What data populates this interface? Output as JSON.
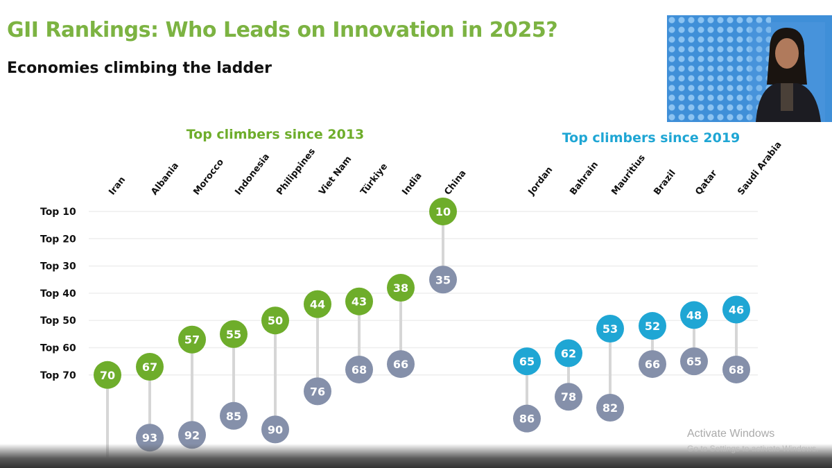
{
  "header": {
    "title": "GII Rankings: Who Leads on Innovation in 2025?",
    "subtitle": "Economies climbing the ladder"
  },
  "watermark": {
    "line1": "Activate Windows",
    "line2": "Go to Settings to activate Windows."
  },
  "chart_data": {
    "type": "dumbbell",
    "y_axis": {
      "direction": "rank (lower is better, top of chart)",
      "ticks": [
        "Top 10",
        "Top 20",
        "Top 30",
        "Top 40",
        "Top 50",
        "Top 60",
        "Top 70"
      ],
      "tick_values": [
        10,
        20,
        30,
        40,
        50,
        60,
        70
      ],
      "grid": true
    },
    "colors": {
      "green": "#6ead2b",
      "blue": "#1fa6d4",
      "gray": "#8590aa",
      "connector": "#d6d6d6"
    },
    "groups": [
      {
        "name": "Top climbers since 2013",
        "color": "#6ead2b",
        "categories": [
          "Iran",
          "Albania",
          "Morocco",
          "Indonesia",
          "Philippines",
          "Viet Nam",
          "Türkiye",
          "India",
          "China"
        ],
        "current_rank": [
          70,
          67,
          57,
          55,
          50,
          44,
          43,
          38,
          10
        ],
        "earlier_rank": [
          null,
          93,
          92,
          85,
          90,
          76,
          68,
          66,
          35
        ]
      },
      {
        "name": "Top climbers since 2019",
        "color": "#1fa6d4",
        "categories": [
          "Jordan",
          "Bahrain",
          "Mauritius",
          "Brazil",
          "Qatar",
          "Saudi Arabia"
        ],
        "current_rank": [
          65,
          62,
          53,
          52,
          48,
          46
        ],
        "earlier_rank": [
          86,
          78,
          82,
          66,
          65,
          68
        ]
      }
    ]
  }
}
